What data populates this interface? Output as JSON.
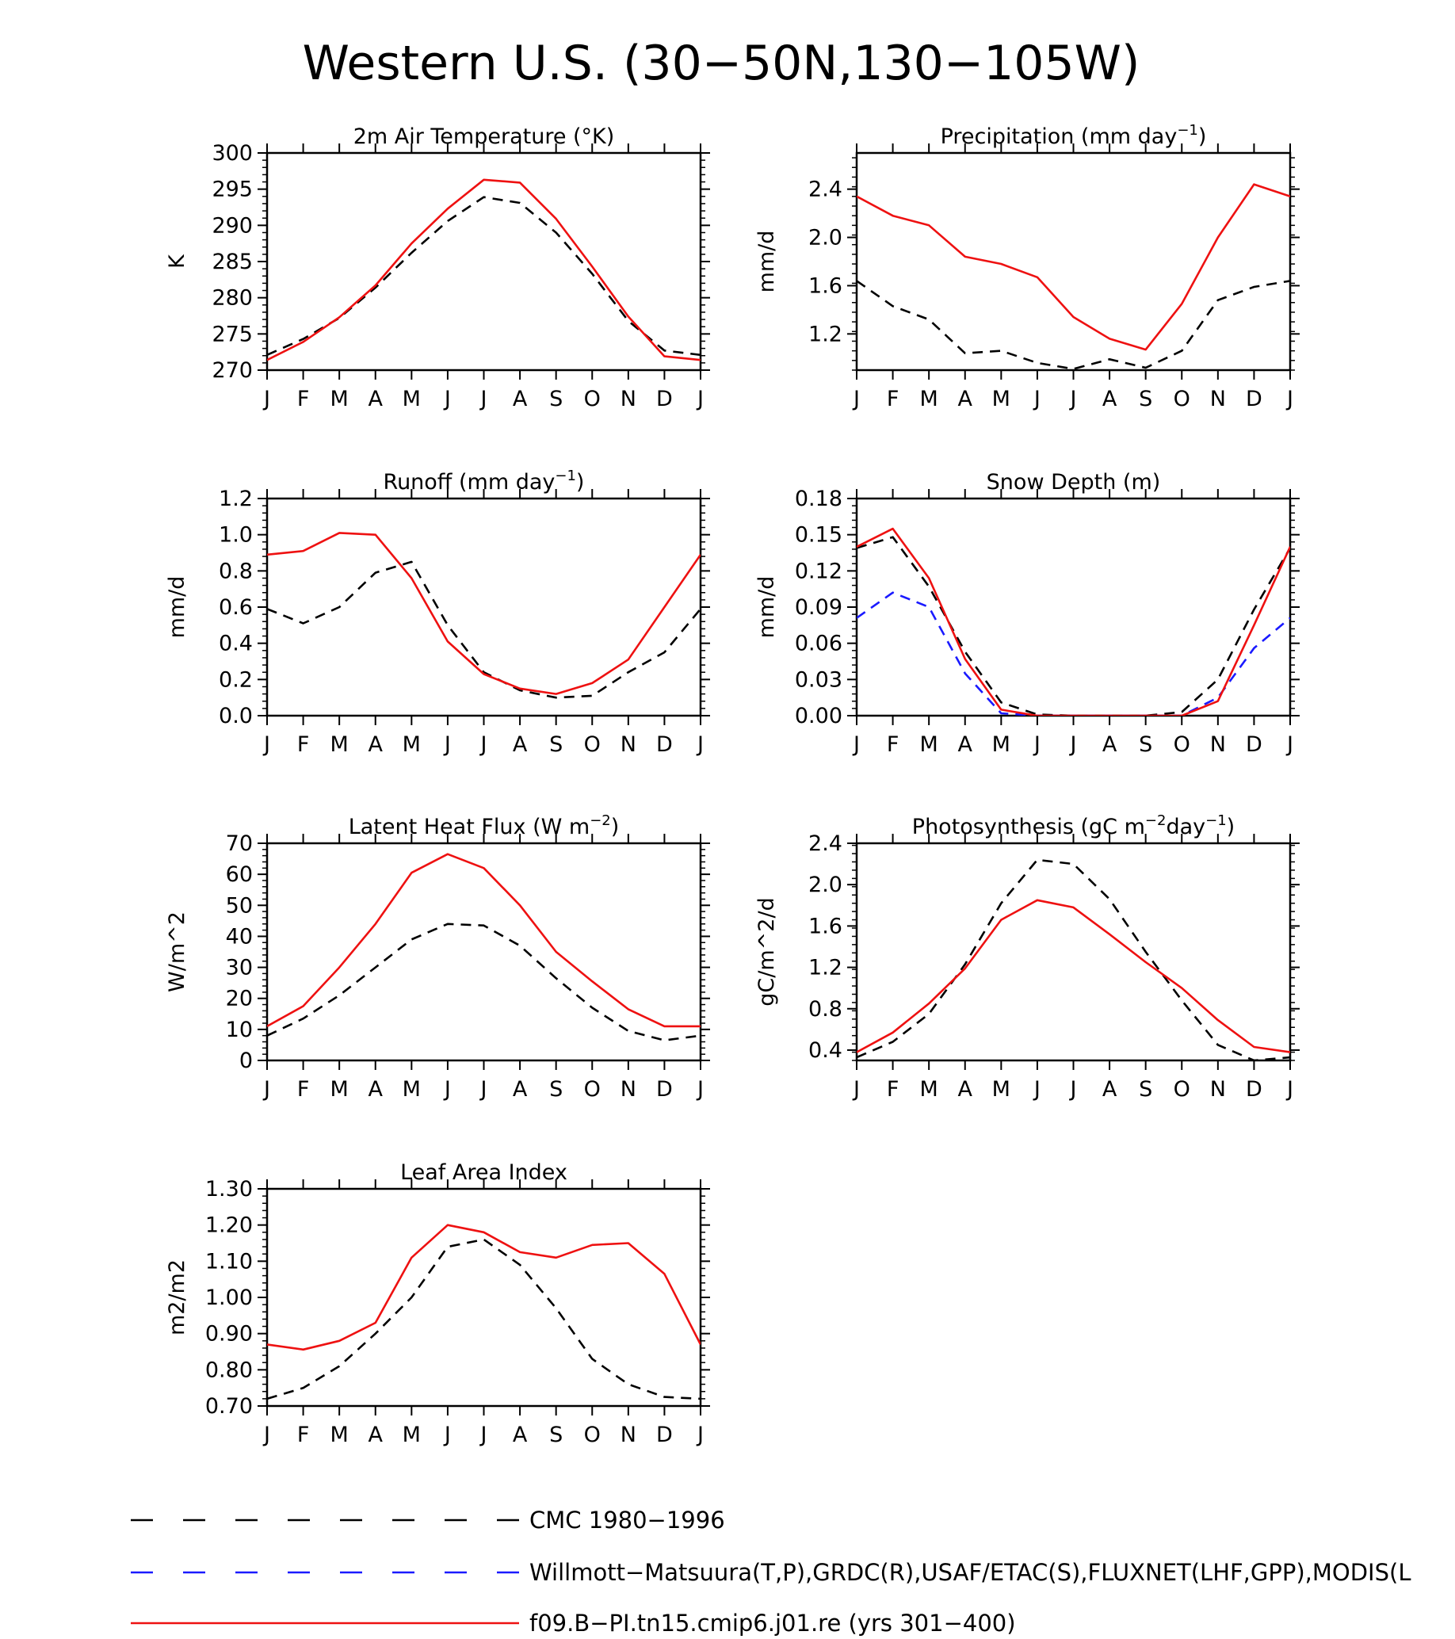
{
  "title": "Western U.S. (30−50N,130−105W)",
  "month_labels": [
    "J",
    "F",
    "M",
    "A",
    "M",
    "J",
    "J",
    "A",
    "S",
    "O",
    "N",
    "D",
    "J"
  ],
  "legend": [
    {
      "label": "CMC 1980−1996",
      "color": "#000000",
      "style": "dashed"
    },
    {
      "label": "Willmott−Matsuura(T,P),GRDC(R),USAF/ETAC(S),FLUXNET(LHF,GPP),MODIS(L",
      "color": "#1a1aff",
      "style": "dashed"
    },
    {
      "label": "f09.B−PI.tn15.cmip6.j01.re (yrs 301−400)",
      "color": "#ee1111",
      "style": "solid"
    }
  ],
  "chart_data": [
    {
      "type": "line",
      "title": "2m Air Temperature (°K)",
      "ylabel": "K",
      "ylim": [
        270,
        300
      ],
      "yticks": [
        270,
        275,
        280,
        285,
        290,
        295,
        300
      ],
      "ytick_labels": [
        "270",
        "275",
        "280",
        "285",
        "290",
        "295",
        "300"
      ],
      "series": [
        {
          "legend_index": 0,
          "values": [
            272.1,
            274.3,
            277.2,
            281.4,
            286.2,
            290.6,
            293.9,
            293.1,
            289.0,
            283.3,
            276.8,
            272.7,
            272.1
          ]
        },
        {
          "legend_index": 2,
          "values": [
            271.4,
            273.9,
            277.3,
            281.7,
            287.5,
            292.3,
            296.3,
            295.9,
            290.9,
            284.3,
            277.4,
            271.9,
            271.4
          ]
        }
      ]
    },
    {
      "type": "line",
      "title": "Precipitation (mm day",
      "title_sup": "−1",
      "title_end": ")",
      "ylabel": "mm/d",
      "ylim": [
        0.9,
        2.7
      ],
      "yticks": [
        1.2,
        1.6,
        2.0,
        2.4
      ],
      "ytick_labels": [
        "1.2",
        "1.6",
        "2.0",
        "2.4"
      ],
      "series": [
        {
          "legend_index": 0,
          "values": [
            1.64,
            1.43,
            1.32,
            1.04,
            1.06,
            0.96,
            0.91,
            0.99,
            0.92,
            1.06,
            1.48,
            1.59,
            1.64
          ]
        },
        {
          "legend_index": 2,
          "values": [
            2.34,
            2.18,
            2.1,
            1.84,
            1.78,
            1.67,
            1.34,
            1.16,
            1.07,
            1.45,
            2.0,
            2.44,
            2.34
          ]
        }
      ]
    },
    {
      "type": "line",
      "title": "Runoff (mm day",
      "title_sup": "−1",
      "title_end": ")",
      "ylabel": "mm/d",
      "ylim": [
        0.0,
        1.2
      ],
      "yticks": [
        0.0,
        0.2,
        0.4,
        0.6,
        0.8,
        1.0,
        1.2
      ],
      "ytick_labels": [
        "0.0",
        "0.2",
        "0.4",
        "0.6",
        "0.8",
        "1.0",
        "1.2"
      ],
      "series": [
        {
          "legend_index": 0,
          "values": [
            0.59,
            0.51,
            0.6,
            0.79,
            0.85,
            0.5,
            0.24,
            0.14,
            0.1,
            0.11,
            0.24,
            0.35,
            0.59
          ]
        },
        {
          "legend_index": 2,
          "values": [
            0.89,
            0.91,
            1.01,
            1.0,
            0.76,
            0.41,
            0.23,
            0.15,
            0.12,
            0.18,
            0.31,
            0.6,
            0.89
          ]
        }
      ]
    },
    {
      "type": "line",
      "title": "Snow Depth (m)",
      "ylabel": "mm/d",
      "ylim": [
        0.0,
        0.18
      ],
      "yticks": [
        0.0,
        0.03,
        0.06,
        0.09,
        0.12,
        0.15,
        0.18
      ],
      "ytick_labels": [
        "0.00",
        "0.03",
        "0.06",
        "0.09",
        "0.12",
        "0.15",
        "0.18"
      ],
      "series": [
        {
          "legend_index": 0,
          "values": [
            0.139,
            0.148,
            0.107,
            0.053,
            0.011,
            0.001,
            0.0,
            0.0,
            0.0,
            0.003,
            0.03,
            0.088,
            0.139
          ]
        },
        {
          "legend_index": 1,
          "values": [
            0.081,
            0.102,
            0.09,
            0.035,
            0.002,
            0.0,
            0.0,
            0.0,
            0.0,
            0.0,
            0.015,
            0.056,
            0.081
          ]
        },
        {
          "legend_index": 2,
          "values": [
            0.14,
            0.155,
            0.114,
            0.047,
            0.005,
            0.0,
            0.0,
            0.0,
            0.0,
            0.0,
            0.012,
            0.075,
            0.14
          ]
        }
      ]
    },
    {
      "type": "line",
      "title": "Latent Heat Flux (W m",
      "title_sup": "−2",
      "title_end": ")",
      "ylabel": "W/m^2",
      "ylim": [
        0,
        70
      ],
      "yticks": [
        0,
        10,
        20,
        30,
        40,
        50,
        60,
        70
      ],
      "ytick_labels": [
        "0",
        "10",
        "20",
        "30",
        "40",
        "50",
        "60",
        "70"
      ],
      "series": [
        {
          "legend_index": 0,
          "values": [
            8,
            13.5,
            21,
            30,
            39,
            44,
            43.5,
            37,
            26.5,
            17,
            9.5,
            6.5,
            8
          ]
        },
        {
          "legend_index": 2,
          "values": [
            11,
            17.5,
            30,
            44,
            60.5,
            66.5,
            62,
            50,
            35,
            25.5,
            16.5,
            11,
            11
          ]
        }
      ]
    },
    {
      "type": "line",
      "title": "Photosynthesis (gC m",
      "title_sup": "−2",
      "title_mid": "day",
      "title_sup2": "−1",
      "title_end": ")",
      "ylabel": "gC/m^2/d",
      "ylim": [
        0.3,
        2.4
      ],
      "yticks": [
        0.4,
        0.8,
        1.2,
        1.6,
        2.0,
        2.4
      ],
      "ytick_labels": [
        "0.4",
        "0.8",
        "1.2",
        "1.6",
        "2.0",
        "2.4"
      ],
      "series": [
        {
          "legend_index": 0,
          "values": [
            0.33,
            0.48,
            0.75,
            1.23,
            1.82,
            2.24,
            2.2,
            1.86,
            1.35,
            0.88,
            0.45,
            0.3,
            0.33
          ]
        },
        {
          "legend_index": 2,
          "values": [
            0.38,
            0.57,
            0.85,
            1.19,
            1.66,
            1.85,
            1.78,
            1.52,
            1.25,
            1.0,
            0.69,
            0.43,
            0.38
          ]
        }
      ]
    },
    {
      "type": "line",
      "title": "Leaf Area Index",
      "ylabel": "m2/m2",
      "ylim": [
        0.7,
        1.3
      ],
      "yticks": [
        0.7,
        0.8,
        0.9,
        1.0,
        1.1,
        1.2,
        1.3
      ],
      "ytick_labels": [
        "0.70",
        "0.80",
        "0.90",
        "1.00",
        "1.10",
        "1.20",
        "1.30"
      ],
      "series": [
        {
          "legend_index": 0,
          "values": [
            0.72,
            0.75,
            0.81,
            0.9,
            1.0,
            1.14,
            1.16,
            1.09,
            0.97,
            0.83,
            0.76,
            0.725,
            0.72
          ]
        },
        {
          "legend_index": 2,
          "values": [
            0.87,
            0.856,
            0.88,
            0.93,
            1.11,
            1.2,
            1.18,
            1.125,
            1.11,
            1.145,
            1.15,
            1.065,
            0.87
          ]
        }
      ]
    }
  ]
}
